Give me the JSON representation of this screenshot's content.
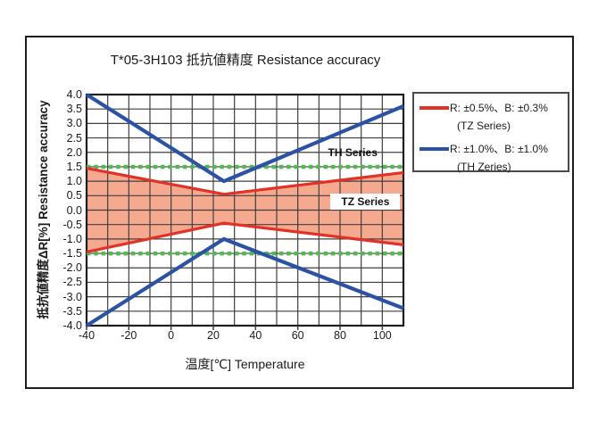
{
  "chart_data": {
    "type": "line",
    "title": "T*05-3H103 抵抗値精度 Resistance accuracy",
    "xlabel": "温度[℃] Temperature",
    "ylabel": "抵抗値精度ΔR[%] Resistance accuracy",
    "xlim": [
      -40,
      110
    ],
    "ylim": [
      -4,
      4
    ],
    "x_ticks": [
      "-40",
      "-20",
      "0",
      "20",
      "40",
      "60",
      "80",
      "100"
    ],
    "y_ticks": [
      "4.0",
      "3.5",
      "3.0",
      "2.5",
      "2.0",
      "1.5",
      "1.0",
      "0.5",
      "0.0",
      "-0.5",
      "-1.0",
      "-1.5",
      "-2.0",
      "-2.5",
      "-3.0",
      "-3.5",
      "-4.0"
    ],
    "x_grid_step": 10,
    "y_grid_step": 0.5,
    "grid": true,
    "colors": {
      "tz": "#e23127",
      "th": "#2b52a3",
      "limit": "#52b952",
      "band_fill": "#f5aa90",
      "grid": "#3f3f3f"
    },
    "series": [
      {
        "name": "TZ Series upper limit (R: ±0.5%, B: ±0.3%)",
        "color_key": "tz",
        "x": [
          -40,
          25,
          110
        ],
        "y": [
          1.45,
          0.55,
          1.3
        ]
      },
      {
        "name": "TZ Series lower limit (R: ±0.5%, B: ±0.3%)",
        "color_key": "tz",
        "x": [
          -40,
          25,
          110
        ],
        "y": [
          -1.45,
          -0.45,
          -1.2
        ]
      },
      {
        "name": "TH Series upper limit (R: ±1.0%, B: ±1.0%)",
        "color_key": "th",
        "x": [
          -40,
          25,
          110
        ],
        "y": [
          4.0,
          1.0,
          3.6
        ]
      },
      {
        "name": "TH Series lower limit (R: ±1.0%, B: ±1.0%)",
        "color_key": "th",
        "x": [
          -40,
          25,
          110
        ],
        "y": [
          -4.0,
          -1.0,
          -3.4
        ]
      }
    ],
    "band": {
      "upper": 0,
      "lower": 1
    },
    "limit_lines": [
      1.5,
      -1.5
    ],
    "annotations": [
      {
        "text": "TH Series",
        "x": 86,
        "y": 2.0,
        "boxed": false
      },
      {
        "text": "TZ Series",
        "x": 92,
        "y": 0.3,
        "boxed": true
      }
    ]
  },
  "legend": {
    "entries": [
      {
        "swatch_color": "#e23127",
        "line1": "R: ±0.5%、B: ±0.3%",
        "line2": "(TZ Series)"
      },
      {
        "swatch_color": "#2b52a3",
        "line1": "R: ±1.0%、B: ±1.0%",
        "line2": "(TH Zeries)"
      }
    ]
  }
}
